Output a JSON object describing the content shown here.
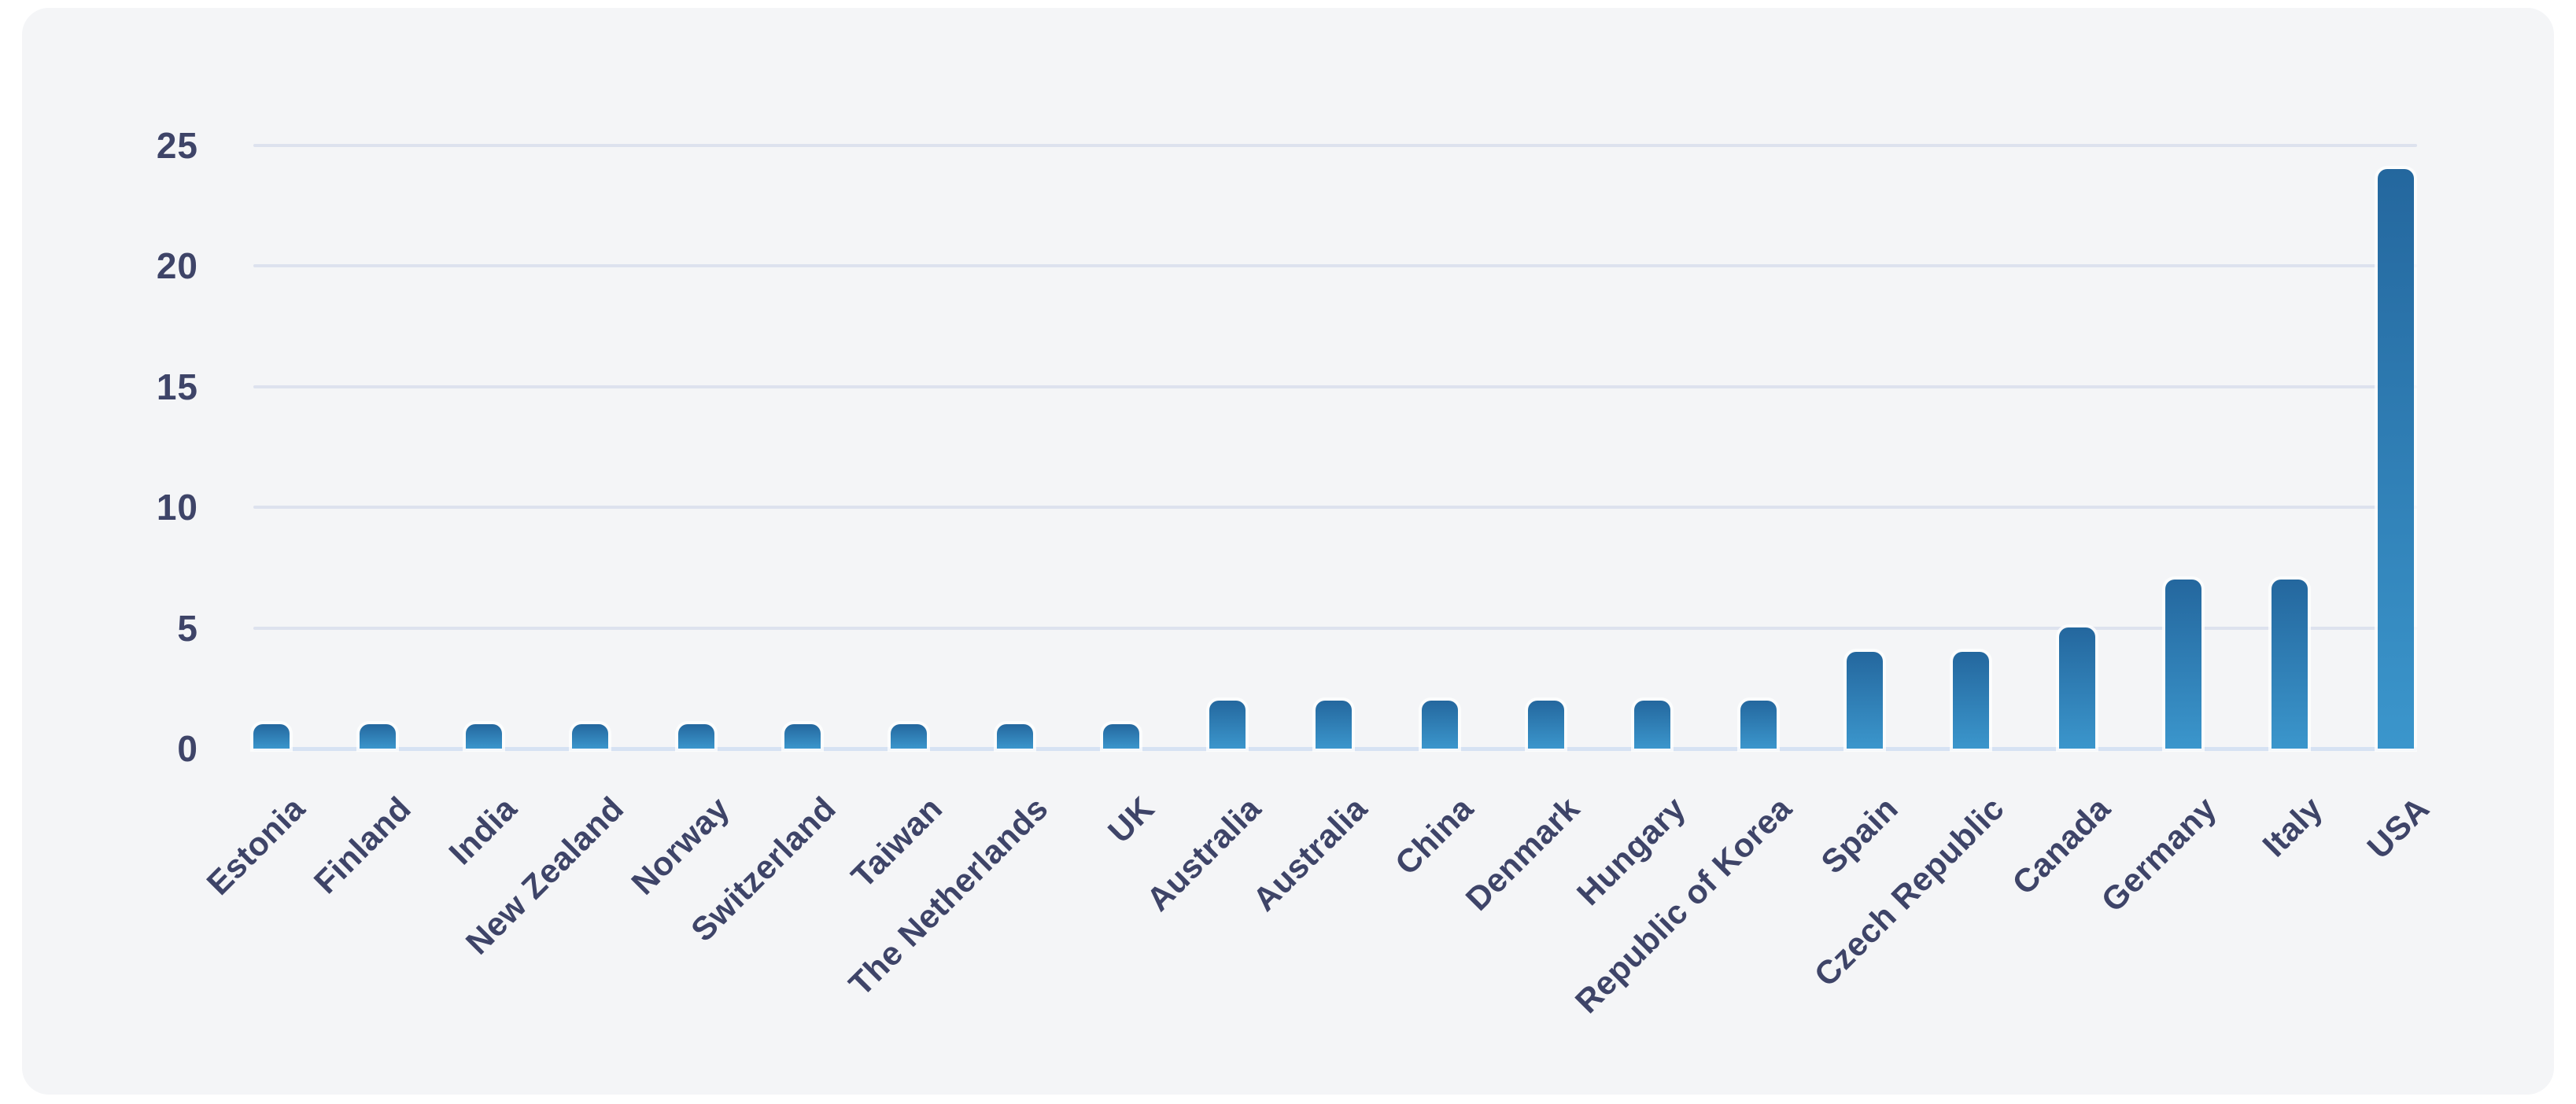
{
  "chart_data": {
    "type": "bar",
    "categories": [
      "Estonia",
      "Finland",
      "India",
      "New Zealand",
      "Norway",
      "Switzerland",
      "Taiwan",
      "The Netherlands",
      "UK",
      "Australia",
      "Australia",
      "China",
      "Denmark",
      "Hungary",
      "Republic of Korea",
      "Spain",
      "Czech Republic",
      "Canada",
      "Germany",
      "Italy",
      "USA"
    ],
    "values": [
      1,
      1,
      1,
      1,
      1,
      1,
      1,
      1,
      1,
      2,
      2,
      2,
      2,
      2,
      2,
      4,
      4,
      5,
      7,
      7,
      24
    ],
    "yticks": [
      0,
      5,
      10,
      15,
      20,
      25
    ],
    "ylim": [
      0,
      25
    ],
    "grid": true,
    "x_label_rotation_deg": -45
  },
  "colors": {
    "page_background": "#ffffff",
    "card_background": "#f4f5f7",
    "gridline": "#dde2ee",
    "baseline": "#d6e2f3",
    "label_text": "#3e4468",
    "bar_gradient_top": "#24679e",
    "bar_gradient_bottom": "#3b96cc"
  }
}
